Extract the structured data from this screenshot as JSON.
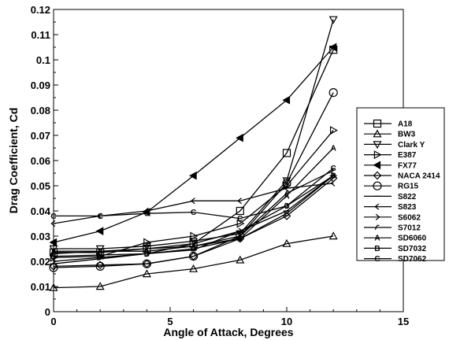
{
  "chart_data": {
    "type": "line",
    "title": "",
    "xlabel": "Angle of Attack, Degrees",
    "ylabel": "Drag Coefficient, Cd",
    "xlim": [
      0,
      15
    ],
    "ylim": [
      0,
      0.12
    ],
    "xticks": [
      "0",
      "5",
      "10",
      "15"
    ],
    "yticks": [
      "0",
      "0.01",
      "0.02",
      "0.03",
      "0.04",
      "0.05",
      "0.06",
      "0.07",
      "0.08",
      "0.09",
      "0.1",
      "0.11",
      "0.12"
    ],
    "grid": false,
    "legend_position": "right",
    "x": [
      0,
      2,
      4,
      6,
      8,
      10,
      12
    ],
    "series": [
      {
        "name": "A18",
        "marker": "square",
        "values": [
          0.0235,
          0.0235,
          0.025,
          0.027,
          0.04,
          0.063,
          0.104
        ]
      },
      {
        "name": "BW3",
        "marker": "triangle-up",
        "values": [
          0.0095,
          0.01,
          0.015,
          0.017,
          0.0205,
          0.027,
          0.03
        ]
      },
      {
        "name": "Clark Y",
        "marker": "triangle-down",
        "values": [
          0.025,
          0.025,
          0.026,
          0.028,
          0.031,
          0.052,
          0.116
        ]
      },
      {
        "name": "E387",
        "marker": "triangle-right",
        "values": [
          0.0215,
          0.022,
          0.0275,
          0.03,
          0.035,
          0.05,
          0.072
        ]
      },
      {
        "name": "FX77",
        "marker": "triangle-left",
        "values": [
          0.0275,
          0.032,
          0.0395,
          0.054,
          0.069,
          0.084,
          0.105
        ]
      },
      {
        "name": "NACA 2414",
        "marker": "diamond",
        "values": [
          0.018,
          0.0185,
          0.019,
          0.022,
          0.029,
          0.038,
          0.053
        ]
      },
      {
        "name": "RG15",
        "marker": "circle",
        "values": [
          0.0175,
          0.018,
          0.019,
          0.022,
          0.03,
          0.051,
          0.087
        ]
      },
      {
        "name": "S822",
        "marker": "dash",
        "values": [
          0.019,
          0.021,
          0.023,
          0.0245,
          0.032,
          0.04,
          0.054
        ]
      },
      {
        "name": "S823",
        "marker": "arrow-left",
        "values": [
          0.035,
          0.038,
          0.04,
          0.044,
          0.044,
          0.049,
          0.051
        ]
      },
      {
        "name": "S6062",
        "marker": "arrow-right",
        "values": [
          0.02,
          0.0215,
          0.023,
          0.027,
          0.032,
          0.042,
          0.054
        ]
      },
      {
        "name": "S7012",
        "marker": "hook",
        "values": [
          0.023,
          0.024,
          0.025,
          0.026,
          0.03,
          0.047,
          0.056
        ]
      },
      {
        "name": "SD6060",
        "marker": "letter",
        "letter": "A",
        "values": [
          0.024,
          0.024,
          0.024,
          0.026,
          0.029,
          0.046,
          0.065
        ]
      },
      {
        "name": "SD7032",
        "marker": "letter",
        "letter": "B",
        "values": [
          0.022,
          0.0225,
          0.023,
          0.025,
          0.029,
          0.039,
          0.054
        ]
      },
      {
        "name": "SD7062",
        "marker": "letter",
        "letter": "C",
        "values": [
          0.038,
          0.038,
          0.039,
          0.0395,
          0.037,
          0.042,
          0.057
        ]
      }
    ]
  }
}
